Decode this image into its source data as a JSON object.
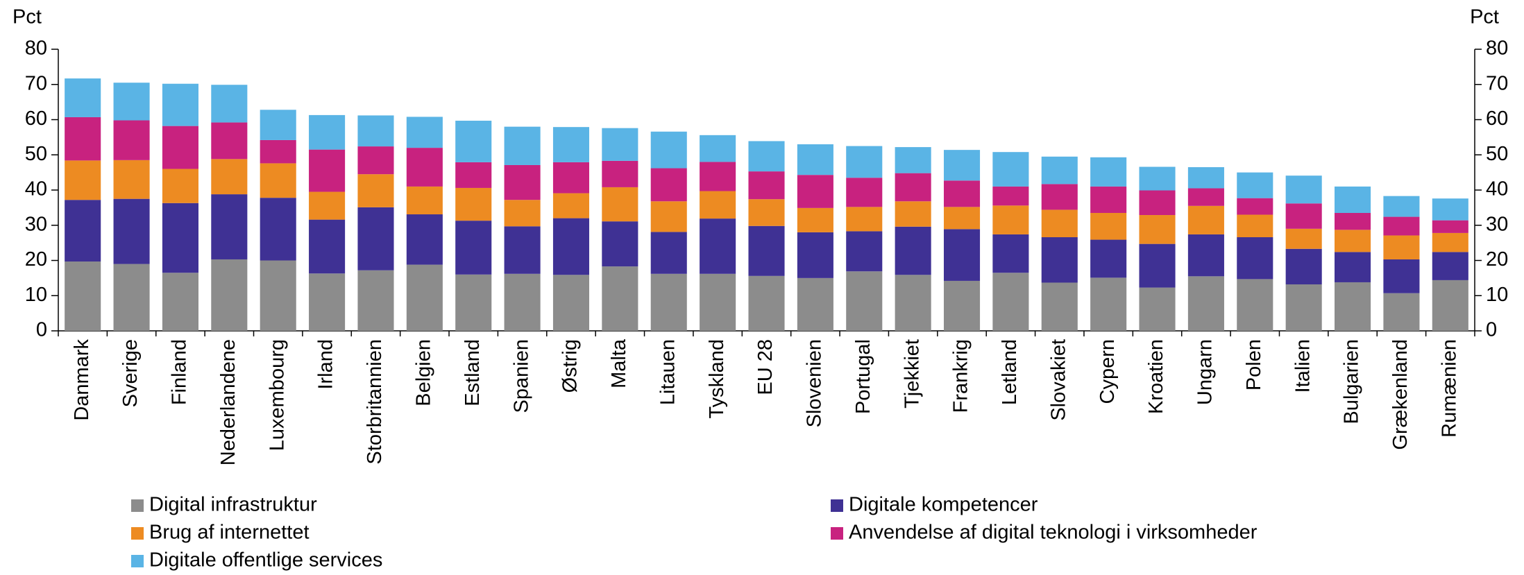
{
  "chart_data": {
    "type": "stacked_bar",
    "ylabel": "Pct",
    "y2label": "Pct",
    "categories": [
      "Danmark",
      "Sverige",
      "Finland",
      "Nederlandene",
      "Luxembourg",
      "Irland",
      "Storbritannien",
      "Belgien",
      "Estland",
      "Spanien",
      "Østrig",
      "Malta",
      "Litauen",
      "Tyskland",
      "EU 28",
      "Slovenien",
      "Portugal",
      "Tjekkiet",
      "Frankrig",
      "Letland",
      "Slovakiet",
      "Cypern",
      "Kroatien",
      "Ungarn",
      "Polen",
      "Italien",
      "Bulgarien",
      "Grækenland",
      "Rumænien"
    ],
    "series": [
      {
        "name": "Digital infrastruktur",
        "color": "#8c8c8c",
        "values": [
          19.7,
          19.0,
          16.5,
          20.3,
          20.0,
          16.3,
          17.2,
          18.8,
          16.0,
          16.2,
          15.9,
          18.3,
          16.2,
          16.2,
          15.6,
          15.0,
          16.9,
          15.9,
          14.2,
          16.5,
          13.7,
          15.1,
          12.3,
          15.5,
          14.7,
          13.2,
          13.8,
          10.7,
          14.4
        ]
      },
      {
        "name": "Digitale kompetencer",
        "color": "#3f3194",
        "values": [
          17.5,
          18.5,
          19.8,
          18.5,
          17.8,
          15.3,
          17.9,
          14.3,
          15.3,
          13.5,
          16.1,
          12.8,
          11.9,
          15.7,
          14.2,
          13.0,
          11.4,
          13.7,
          14.7,
          10.9,
          12.9,
          10.8,
          12.4,
          11.9,
          11.9,
          10.1,
          8.6,
          9.6,
          8.0
        ]
      },
      {
        "name": "Brug af internettet",
        "color": "#ed8b22",
        "values": [
          11.2,
          11.0,
          9.7,
          10.0,
          9.8,
          7.9,
          9.4,
          7.9,
          9.3,
          7.5,
          7.1,
          9.7,
          8.7,
          7.8,
          7.6,
          6.9,
          6.9,
          7.2,
          6.3,
          8.2,
          7.8,
          7.6,
          8.2,
          8.1,
          6.4,
          5.7,
          6.3,
          6.8,
          5.4
        ]
      },
      {
        "name": "Anvendelse af digital teknologi i virksomheder",
        "color": "#c8227f",
        "values": [
          12.3,
          11.3,
          12.2,
          10.4,
          6.6,
          12.0,
          7.9,
          11.0,
          7.3,
          9.9,
          8.8,
          7.5,
          9.4,
          8.3,
          7.9,
          9.4,
          8.3,
          8.0,
          7.5,
          5.4,
          7.3,
          7.5,
          7.0,
          5.0,
          4.7,
          7.2,
          4.8,
          5.3,
          3.6
        ]
      },
      {
        "name": "Digitale offentlige services",
        "color": "#5ab4e5",
        "values": [
          11.0,
          10.7,
          12.0,
          10.7,
          8.6,
          9.8,
          8.8,
          8.8,
          11.8,
          10.9,
          10.0,
          9.3,
          10.4,
          7.6,
          8.6,
          8.7,
          9.0,
          7.4,
          8.7,
          9.8,
          7.8,
          8.3,
          6.7,
          6.0,
          7.3,
          7.9,
          7.5,
          5.9,
          6.2
        ]
      }
    ],
    "ylim": [
      0,
      80
    ],
    "yticks": [
      0,
      10,
      20,
      30,
      40,
      50,
      60,
      70,
      80
    ],
    "y2lim": [
      0,
      80
    ],
    "y2ticks": [
      0,
      10,
      20,
      30,
      40,
      50,
      60,
      70,
      80
    ],
    "legend": "bottom"
  }
}
